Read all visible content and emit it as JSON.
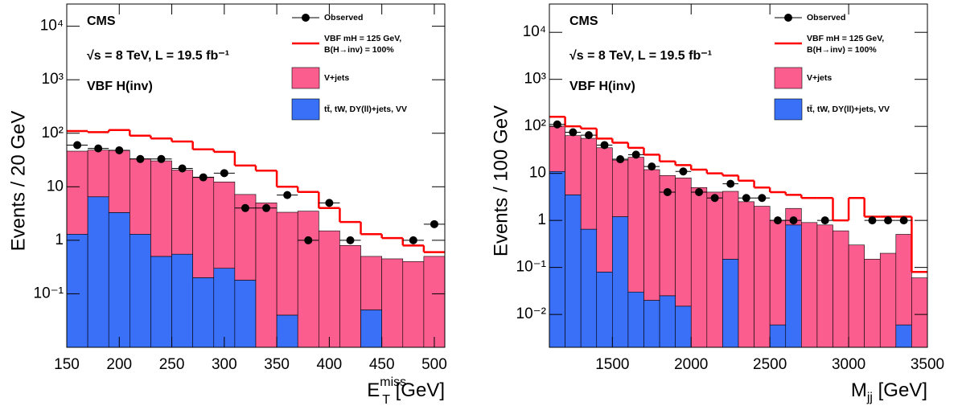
{
  "chart_data": [
    {
      "type": "histogram",
      "experiment": "CMS",
      "energy": "√s = 8 TeV, L = 19.5 fb⁻¹",
      "tag": "VBF H(inv)",
      "y_label": "Events / 20 GeV",
      "x_label": {
        "main": "E",
        "sub": "T",
        "sup": "miss",
        "unit": " [GeV]"
      },
      "bins": [
        150,
        170,
        190,
        210,
        230,
        250,
        270,
        290,
        310,
        330,
        350,
        370,
        390,
        410,
        430,
        450,
        470,
        490,
        510
      ],
      "xlim": [
        150,
        510
      ],
      "xticks": [
        150,
        200,
        250,
        300,
        350,
        400,
        450,
        500
      ],
      "ylim": [
        0.01,
        26000
      ],
      "log_y": true,
      "yticks": [
        {
          "value": 0.1,
          "label": "10⁻¹"
        },
        1,
        10,
        {
          "value": 100,
          "label": "10²"
        },
        {
          "value": 1000,
          "label": "10³"
        },
        {
          "value": 10000,
          "label": "10⁴"
        }
      ],
      "series": [
        {
          "name": [
            "Observed"
          ],
          "style": "points",
          "color": "#000000",
          "values": [
            60,
            52,
            48,
            33,
            33,
            22,
            15,
            18,
            4,
            4,
            7,
            1,
            5,
            1,
            null,
            null,
            1,
            2
          ]
        },
        {
          "name": [
            "VBF mH = 125 GeV,",
            "B(H→inv) = 100%"
          ],
          "style": "line",
          "color": "#ff0000",
          "values": [
            110,
            105,
            115,
            90,
            80,
            70,
            50,
            45,
            25,
            20,
            10,
            8,
            4,
            2.2,
            1.3,
            1.1,
            0.8,
            0.6
          ]
        },
        {
          "name": [
            "V+jets"
          ],
          "style": "stack",
          "color": "#fb5e8e",
          "values": [
            45,
            42,
            45,
            32,
            30,
            20,
            15,
            12,
            7,
            5,
            3.3,
            3.5,
            1.5,
            0.8,
            0.45,
            0.45,
            0.4,
            0.5
          ]
        },
        {
          "name": [
            "tt̄, tW, DY(ll)+jets, VV"
          ],
          "style": "stack",
          "color": "#3a6ff7",
          "values": [
            1.3,
            6.5,
            3.3,
            1.3,
            0.5,
            0.55,
            0.2,
            0.3,
            0.18,
            null,
            0.04,
            null,
            null,
            null,
            0.05,
            null,
            null,
            null
          ]
        }
      ]
    },
    {
      "type": "histogram",
      "experiment": "CMS",
      "energy": "√s = 8 TeV, L = 19.5 fb⁻¹",
      "tag": "VBF H(inv)",
      "y_label": "Events / 100 GeV",
      "x_label": {
        "main": "M",
        "sub": "jj",
        "sup": "",
        "unit": " [GeV]"
      },
      "bins": [
        1100,
        1200,
        1300,
        1400,
        1500,
        1600,
        1700,
        1800,
        1900,
        2000,
        2100,
        2200,
        2300,
        2400,
        2500,
        2600,
        2700,
        2800,
        2900,
        3000,
        3100,
        3200,
        3300,
        3400,
        3500
      ],
      "xlim": [
        1100,
        3500
      ],
      "xticks": [
        1500,
        2000,
        2500,
        3000,
        3500
      ],
      "ylim": [
        0.002,
        40000
      ],
      "log_y": true,
      "yticks": [
        {
          "value": 0.01,
          "label": "10⁻²"
        },
        {
          "value": 0.1,
          "label": "10⁻¹"
        },
        1,
        10,
        {
          "value": 100,
          "label": "10²"
        },
        {
          "value": 1000,
          "label": "10³"
        },
        {
          "value": 10000,
          "label": "10⁴"
        }
      ],
      "series": [
        {
          "name": [
            "Observed"
          ],
          "style": "points",
          "color": "#000000",
          "values": [
            110,
            75,
            65,
            40,
            20,
            25,
            14,
            4,
            11,
            4,
            3,
            6,
            3,
            3,
            1,
            1,
            null,
            1,
            null,
            null,
            1,
            1,
            1,
            null
          ]
        },
        {
          "name": [
            "VBF mH = 125 GeV,",
            "B(H→inv) = 100%"
          ],
          "style": "line",
          "color": "#ff0000",
          "values": [
            160,
            100,
            90,
            55,
            45,
            35,
            25,
            18,
            15,
            12,
            10,
            9,
            7,
            5,
            4,
            3.5,
            3,
            3,
            1,
            3,
            1.2,
            1.2,
            1.2,
            0.08
          ]
        },
        {
          "name": [
            "V+jets"
          ],
          "style": "stack",
          "color": "#fb5e8e",
          "values": [
            90,
            60,
            55,
            35,
            18,
            22,
            12,
            9,
            8,
            5,
            4,
            4,
            2.5,
            2,
            1,
            1,
            0.9,
            0.8,
            0.6,
            0.3,
            0.15,
            0.2,
            0.5,
            0.06
          ]
        },
        {
          "name": [
            "tt̄, tW, DY(ll)+jets, VV"
          ],
          "style": "stack",
          "color": "#3a6ff7",
          "values": [
            11,
            3.5,
            0.65,
            0.08,
            1.2,
            0.03,
            0.02,
            0.025,
            0.015,
            null,
            null,
            0.15,
            null,
            null,
            0.006,
            0.8,
            null,
            null,
            null,
            null,
            null,
            null,
            0.006,
            null
          ]
        }
      ]
    }
  ]
}
